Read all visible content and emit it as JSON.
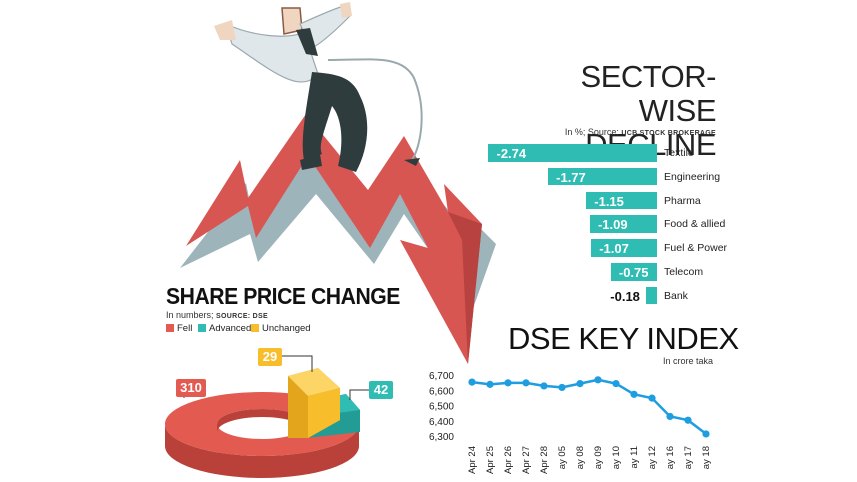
{
  "colors": {
    "teal": "#2ebcb3",
    "red": "#e35a50",
    "yellow": "#f8bd2a",
    "line_blue": "#1e9de0",
    "arrow_red": "#d85652",
    "arrow_shadow": "#9db4ba"
  },
  "illustration": {
    "subject": "businessman riding falling red arrow",
    "icon": "falling-arrow-icon"
  },
  "sector": {
    "title_line1": "SECTOR-WISE",
    "title_line2": "DECLINE",
    "subtitle_prefix": "In %; Source:",
    "subtitle_source": "UCB STOCK BROKERAGE"
  },
  "share": {
    "title": "SHARE PRICE CHANGE",
    "subtitle_prefix": "In numbers;",
    "subtitle_source": "SOURCE: DSE"
  },
  "dse": {
    "title": "DSE KEY INDEX",
    "subtitle": "In crore taka"
  },
  "chart_data": [
    {
      "type": "bar",
      "orientation": "horizontal",
      "title": "SECTOR-WISE DECLINE",
      "subtitle": "In %; Source: UCB STOCK BROKERAGE",
      "categories": [
        "Textile",
        "Engineering",
        "Pharma",
        "Food & allied",
        "Fuel & Power",
        "Telecom",
        "Bank"
      ],
      "values": [
        -2.74,
        -1.77,
        -1.15,
        -1.09,
        -1.07,
        -0.75,
        -0.18
      ],
      "labels": [
        "-2.74",
        "-1.77",
        "-1.15",
        "-1.09",
        "-1.07",
        "-0.75",
        "-0.18"
      ],
      "color": "#2ebcb3"
    },
    {
      "type": "pie",
      "style": "3d-donut",
      "title": "SHARE PRICE CHANGE",
      "subtitle": "In numbers; SOURCE: DSE",
      "categories": [
        "Fell",
        "Advanced",
        "Unchanged"
      ],
      "values": [
        310,
        42,
        29
      ],
      "labels": [
        "310",
        "42",
        "29"
      ],
      "colors": [
        "#e35a50",
        "#2ebcb3",
        "#f8bd2a"
      ],
      "legend": "top-left"
    },
    {
      "type": "line",
      "title": "DSE KEY INDEX",
      "subtitle": "In crore taka",
      "x": [
        "Apr 24",
        "Apr 25",
        "Apr 26",
        "Apr 27",
        "Apr 28",
        "May 05",
        "May 08",
        "May 09",
        "May 10",
        "May 11",
        "May 12",
        "May 16",
        "May 17",
        "May 18"
      ],
      "x_tick_labels": [
        "Apr 24",
        "Apr 25",
        "Apr 26",
        "Apr 27",
        "Apr 28",
        "ay 05",
        "ay 08",
        "ay 09",
        "ay 10",
        "ay 11",
        "ay 12",
        "ay 16",
        "ay 17",
        "ay 18"
      ],
      "values": [
        6660,
        6645,
        6655,
        6655,
        6635,
        6625,
        6650,
        6675,
        6650,
        6580,
        6555,
        6435,
        6410,
        6320
      ],
      "ylim": [
        6300,
        6700
      ],
      "yticks": [
        6300,
        6400,
        6500,
        6600,
        6700
      ],
      "ytick_labels": [
        "6,300",
        "6,400",
        "6,500",
        "6,600",
        "6,700"
      ],
      "grid": false,
      "color": "#1e9de0"
    }
  ]
}
